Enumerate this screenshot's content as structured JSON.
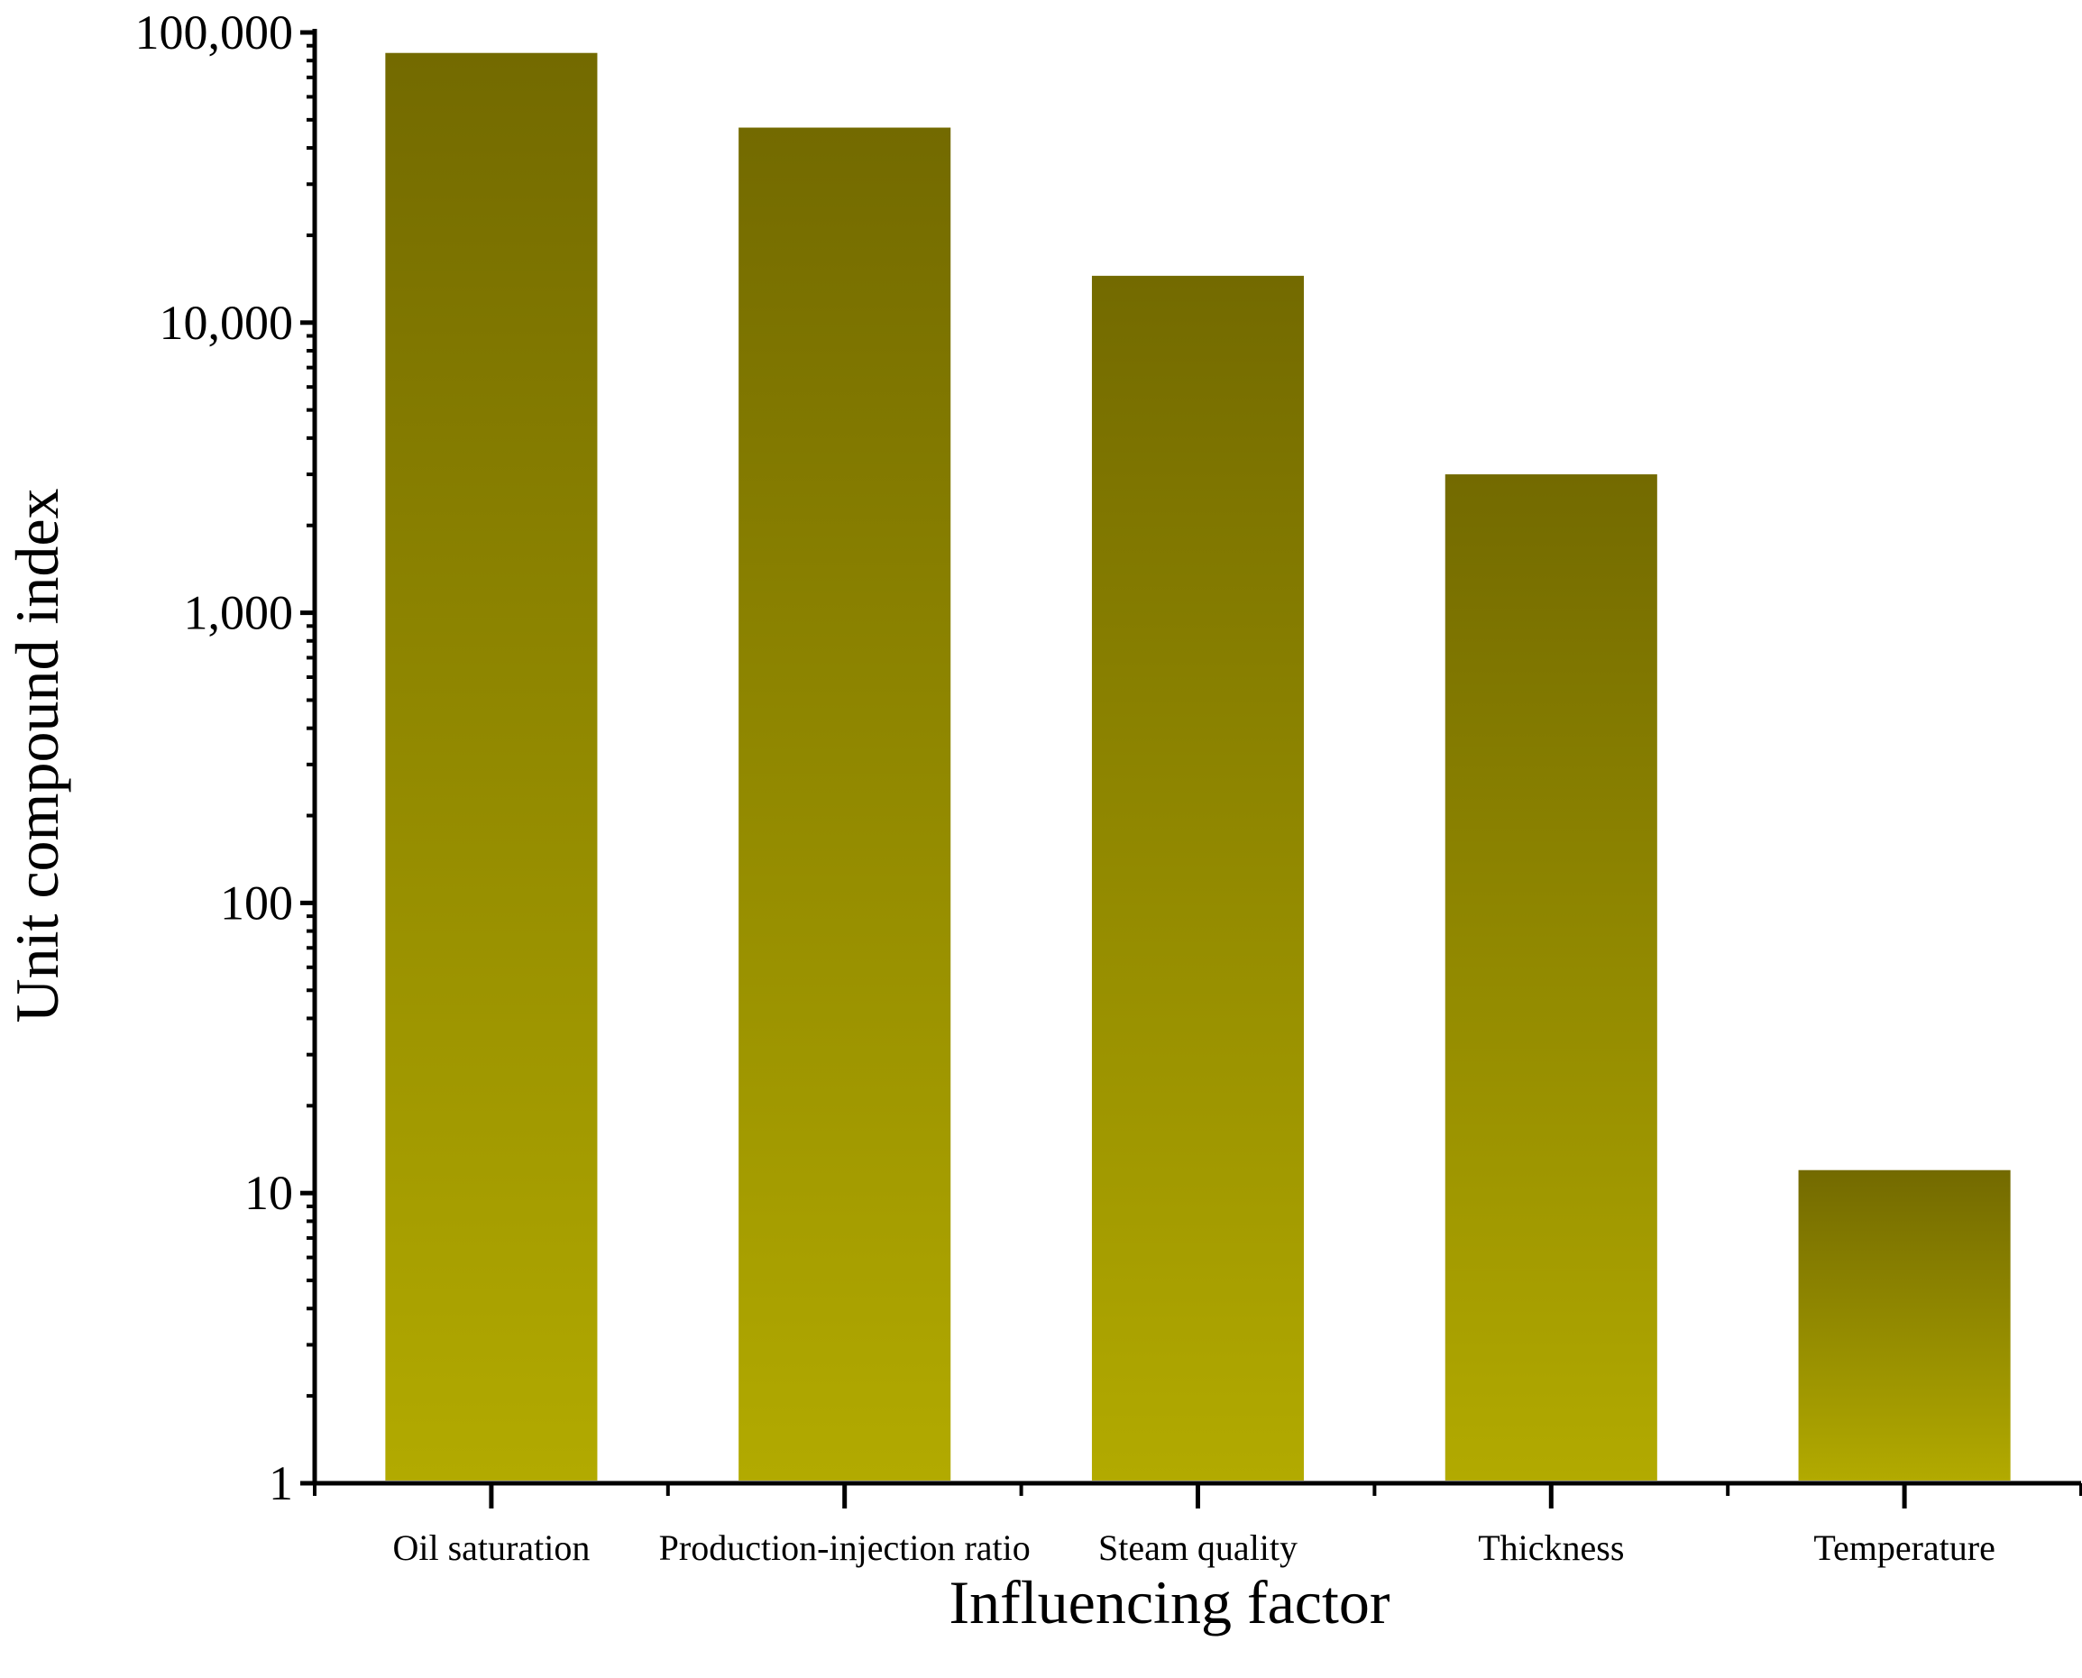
{
  "chart_data": {
    "type": "bar",
    "title": "",
    "xlabel": "Influencing factor",
    "ylabel": "Unit compound index",
    "yscale": "log",
    "ylim": [
      1,
      100000
    ],
    "yticks": [
      {
        "value": 1,
        "label": "1"
      },
      {
        "value": 10,
        "label": "10"
      },
      {
        "value": 100,
        "label": "100"
      },
      {
        "value": 1000,
        "label": "1,000"
      },
      {
        "value": 10000,
        "label": "10,000"
      },
      {
        "value": 100000,
        "label": "100,000"
      }
    ],
    "categories": [
      "Oil saturation",
      "Production-injection ratio",
      "Steam quality",
      "Thickness",
      "Temperature"
    ],
    "values": [
      85000,
      47000,
      14500,
      3000,
      12
    ],
    "colors": {
      "bar_top": "#736a00",
      "bar_bottom": "#b2aa00",
      "axis": "#000000"
    }
  }
}
